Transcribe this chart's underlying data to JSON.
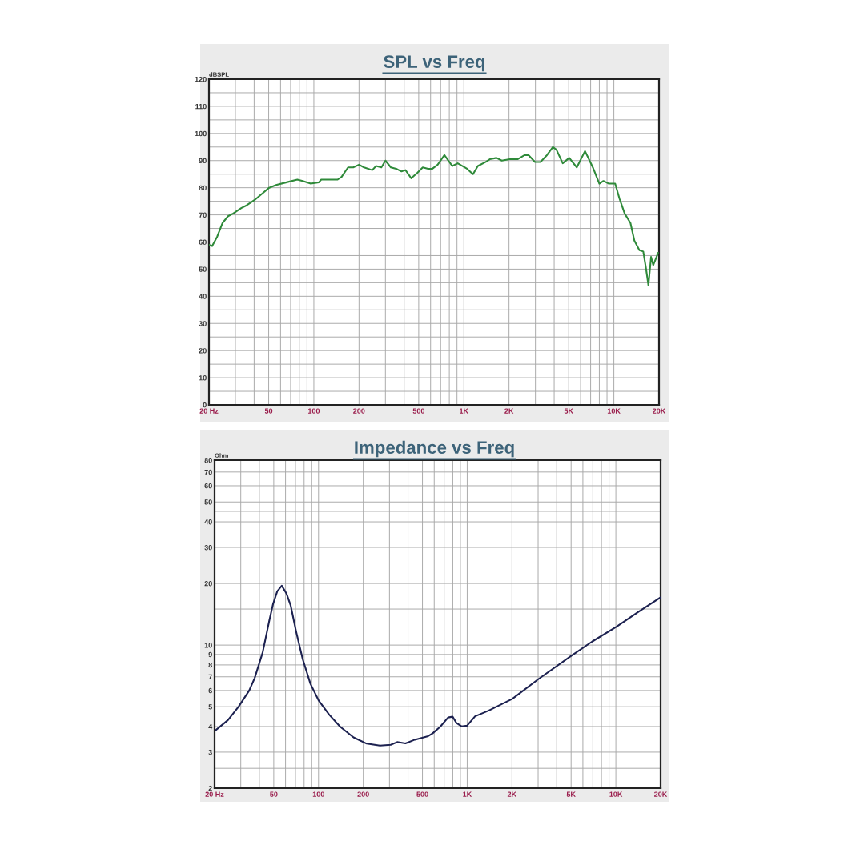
{
  "chart_data": [
    {
      "type": "line",
      "title": "SPL vs Freq",
      "ylabel": "dBSPL",
      "log": "x",
      "grid": true,
      "xlim": [
        20,
        20000
      ],
      "ylim": [
        0,
        120
      ],
      "xticks": [
        {
          "value": 20,
          "label": "20 Hz"
        },
        {
          "value": 30,
          "label": null
        },
        {
          "value": 40,
          "label": null
        },
        50,
        {
          "value": 60,
          "label": null
        },
        {
          "value": 70,
          "label": null
        },
        {
          "value": 80,
          "label": null
        },
        {
          "value": 90,
          "label": null
        },
        100,
        200,
        {
          "value": 300,
          "label": null
        },
        {
          "value": 400,
          "label": null
        },
        500,
        {
          "value": 600,
          "label": null
        },
        {
          "value": 700,
          "label": null
        },
        {
          "value": 800,
          "label": null
        },
        {
          "value": 900,
          "label": null
        },
        {
          "value": 1000,
          "label": "1K"
        },
        {
          "value": 2000,
          "label": "2K"
        },
        {
          "value": 3000,
          "label": null
        },
        {
          "value": 4000,
          "label": null
        },
        {
          "value": 5000,
          "label": "5K"
        },
        {
          "value": 6000,
          "label": null
        },
        {
          "value": 7000,
          "label": null
        },
        {
          "value": 8000,
          "label": null
        },
        {
          "value": 9000,
          "label": null
        },
        {
          "value": 10000,
          "label": "10K"
        },
        {
          "value": 20000,
          "label": "20K"
        }
      ],
      "yticks": [
        0,
        {
          "value": 5,
          "label": null
        },
        10,
        {
          "value": 15,
          "label": null
        },
        20,
        {
          "value": 25,
          "label": null
        },
        30,
        {
          "value": 35,
          "label": null
        },
        40,
        {
          "value": 45,
          "label": null
        },
        50,
        {
          "value": 55,
          "label": null
        },
        60,
        {
          "value": 65,
          "label": null
        },
        70,
        {
          "value": 75,
          "label": null
        },
        80,
        {
          "value": 85,
          "label": null
        },
        90,
        {
          "value": 95,
          "label": null
        },
        100,
        {
          "value": 105,
          "label": null
        },
        110,
        {
          "value": 115,
          "label": null
        },
        120
      ],
      "series": [
        {
          "color": "#2f8a3a",
          "x": [
            20,
            21,
            22.7,
            24.6,
            26.8,
            29,
            32.8,
            35.6,
            40.3,
            45.6,
            50.4,
            56,
            65.8,
            77.6,
            84.3,
            95.4,
            108,
            112,
            127,
            144,
            153,
            169,
            183,
            200,
            216,
            245,
            260,
            282,
            300,
            326,
            354,
            384,
            408,
            446,
            490,
            532,
            578,
            617,
            669,
            742,
            838,
            910,
            1050,
            1150,
            1240,
            1400,
            1490,
            1650,
            1790,
            2020,
            2280,
            2540,
            2700,
            2980,
            3240,
            3580,
            3920,
            4140,
            4560,
            5040,
            5660,
            6420,
            7240,
            8000,
            8520,
            9260,
            10200,
            10900,
            11800,
            12900,
            13700,
            14800,
            15700,
            16300,
            17000,
            17700,
            18300,
            19100,
            19700
          ],
          "values": [
            59,
            58.5,
            62,
            67,
            69.5,
            70.5,
            72.5,
            73.5,
            75.5,
            78,
            80,
            81,
            82,
            83,
            82.5,
            81.5,
            82,
            83,
            83,
            83,
            84,
            87.5,
            87.5,
            88.5,
            87.5,
            86.5,
            88,
            87.5,
            90,
            87.5,
            87,
            86,
            86.5,
            83.5,
            85.5,
            87.5,
            87,
            87,
            88.5,
            92,
            88,
            89,
            87,
            85,
            88,
            89.5,
            90.5,
            91,
            90,
            90.5,
            90.5,
            92,
            92,
            89.5,
            89.5,
            92,
            95,
            94,
            89,
            91,
            87.5,
            93.5,
            87.5,
            81.5,
            82.5,
            81.5,
            81.5,
            76,
            70.5,
            67,
            60.5,
            57,
            56.5,
            51,
            44,
            54.5,
            51.5,
            54,
            56
          ]
        }
      ]
    },
    {
      "type": "line",
      "title": "Impedance vs Freq",
      "ylabel": "Ohm",
      "log": "xy",
      "grid": true,
      "xlim": [
        20,
        20000
      ],
      "ylim": [
        2,
        80
      ],
      "xticks": [
        {
          "value": 20,
          "label": "20 Hz"
        },
        {
          "value": 30,
          "label": null
        },
        {
          "value": 40,
          "label": null
        },
        50,
        {
          "value": 60,
          "label": null
        },
        {
          "value": 70,
          "label": null
        },
        {
          "value": 80,
          "label": null
        },
        {
          "value": 90,
          "label": null
        },
        100,
        200,
        {
          "value": 300,
          "label": null
        },
        {
          "value": 400,
          "label": null
        },
        500,
        {
          "value": 600,
          "label": null
        },
        {
          "value": 700,
          "label": null
        },
        {
          "value": 800,
          "label": null
        },
        {
          "value": 900,
          "label": null
        },
        {
          "value": 1000,
          "label": "1K"
        },
        {
          "value": 2000,
          "label": "2K"
        },
        {
          "value": 3000,
          "label": null
        },
        {
          "value": 4000,
          "label": null
        },
        {
          "value": 5000,
          "label": "5K"
        },
        {
          "value": 6000,
          "label": null
        },
        {
          "value": 7000,
          "label": null
        },
        {
          "value": 8000,
          "label": null
        },
        {
          "value": 9000,
          "label": null
        },
        {
          "value": 10000,
          "label": "10K"
        },
        {
          "value": 20000,
          "label": "20K"
        }
      ],
      "yticks": [
        2,
        {
          "value": 2.5,
          "label": null
        },
        3,
        4,
        5,
        6,
        7,
        8,
        9,
        10,
        {
          "value": 15,
          "label": null
        },
        20,
        30,
        40,
        {
          "value": 45,
          "label": null
        },
        50,
        60,
        70,
        80
      ],
      "series": [
        {
          "color": "#1c2150",
          "x": [
            20,
            24.6,
            29,
            34.2,
            37.2,
            42.1,
            46.7,
            49.5,
            52.8,
            56.6,
            61,
            65,
            70.6,
            78.2,
            88.4,
            100,
            118,
            140,
            172,
            211,
            259,
            306,
            338,
            384,
            444,
            546,
            584,
            658,
            744,
            798,
            845,
            916,
            998,
            1130,
            1390,
            2010,
            3020,
            4980,
            6920,
            10100,
            14100,
            20000
          ],
          "values": [
            3.8,
            4.3,
            5.0,
            6.0,
            6.9,
            9.2,
            13.2,
            15.9,
            18.3,
            19.5,
            17.8,
            15.6,
            11.7,
            8.55,
            6.45,
            5.38,
            4.57,
            3.99,
            3.54,
            3.3,
            3.23,
            3.26,
            3.36,
            3.31,
            3.45,
            3.59,
            3.7,
            3.99,
            4.43,
            4.47,
            4.17,
            4.01,
            4.04,
            4.49,
            4.78,
            5.46,
            6.83,
            8.83,
            10.4,
            12.3,
            14.5,
            17.1
          ]
        }
      ]
    }
  ]
}
